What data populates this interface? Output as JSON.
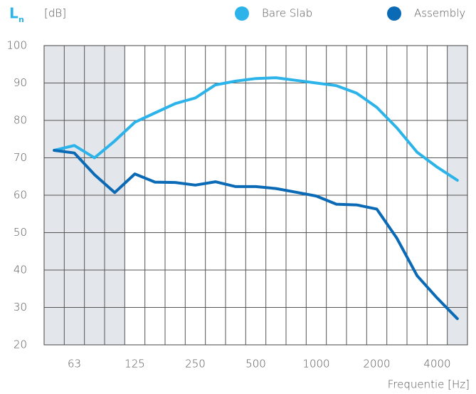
{
  "chart_data": {
    "type": "line",
    "y_label": "L",
    "y_label_sub": "n",
    "y_unit": "[dB]",
    "x_label": "Frequentie [Hz]",
    "categories": [
      null,
      "63",
      null,
      null,
      "125",
      null,
      null,
      "250",
      null,
      null,
      "500",
      null,
      null,
      "1000",
      null,
      null,
      "2000",
      null,
      null,
      "4000",
      null
    ],
    "series": [
      {
        "name": "Bare Slab",
        "color": "#2bb3ea",
        "values": [
          72,
          73.3,
          70,
          74.5,
          79.5,
          82,
          84.5,
          86,
          89.5,
          90.5,
          91.2,
          91.4,
          90.7,
          90,
          89.3,
          87.3,
          83.5,
          78,
          71.5,
          67.5,
          64
        ]
      },
      {
        "name": "Assembly",
        "color": "#0a6ab5",
        "values": [
          72,
          71.3,
          65.5,
          60.7,
          65.7,
          63.5,
          63.4,
          62.7,
          63.6,
          62.3,
          62.3,
          61.8,
          60.8,
          59.8,
          57.6,
          57.4,
          56.3,
          48.5,
          38.5,
          32.5,
          27
        ]
      }
    ],
    "ylim": [
      20,
      100
    ],
    "yticks": [
      20,
      30,
      40,
      50,
      60,
      70,
      80,
      90,
      100
    ],
    "grid": true
  }
}
